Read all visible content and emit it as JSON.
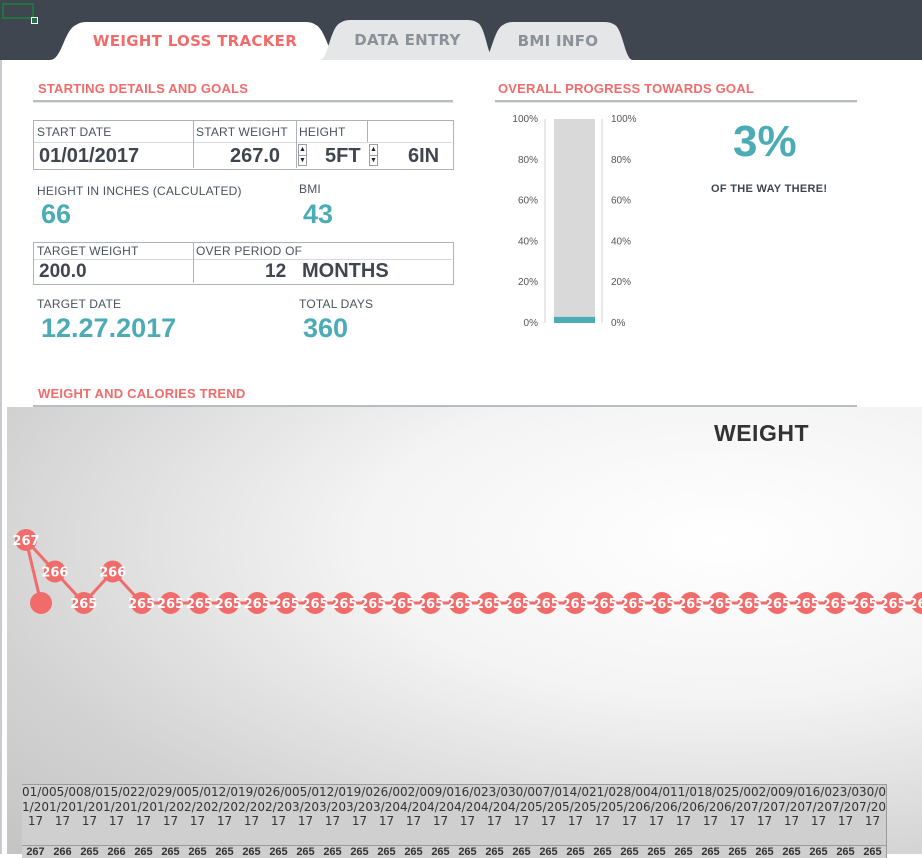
{
  "tabs": [
    {
      "label": "WEIGHT LOSS TRACKER",
      "active": true
    },
    {
      "label": "DATA ENTRY",
      "active": false
    },
    {
      "label": "BMI INFO",
      "active": false
    }
  ],
  "starting": {
    "section_title": "STARTING DETAILS AND GOALS",
    "start_date_label": "START DATE",
    "start_date": "01/01/2017",
    "start_weight_label": "START WEIGHT",
    "start_weight": "267.0",
    "height_label": "HEIGHT",
    "height_ft": "5FT",
    "height_in": "6IN",
    "height_inches_label": "HEIGHT IN INCHES (CALCULATED)",
    "height_inches": "66",
    "bmi_label": "BMI",
    "bmi": "43",
    "target_weight_label": "TARGET WEIGHT",
    "target_weight": "200.0",
    "period_label": "OVER PERIOD OF",
    "period_value": "12",
    "period_unit": "MONTHS",
    "target_date_label": "TARGET DATE",
    "target_date": "12.27.2017",
    "total_days_label": "TOTAL DAYS",
    "total_days": "360"
  },
  "progress": {
    "section_title": "OVERALL PROGRESS TOWARDS GOAL",
    "percent_text": "3%",
    "caption": "OF THE WAY THERE!",
    "ticks": [
      "100%",
      "80%",
      "60%",
      "40%",
      "20%",
      "0%"
    ]
  },
  "trend": {
    "section_title": "WEIGHT AND CALORIES TREND"
  },
  "colors": {
    "accent": "#f26b6b",
    "teal": "#4bacb6",
    "dark": "#3f4650"
  },
  "chart_data": [
    {
      "type": "bar",
      "categories": [
        ""
      ],
      "values": [
        3
      ],
      "ylim": [
        0,
        100
      ],
      "y_tick_labels": [
        "0%",
        "20%",
        "40%",
        "60%",
        "80%",
        "100%"
      ]
    },
    {
      "type": "line",
      "title": "WEIGHT",
      "x": [
        "01/01/2017",
        "05/01/2017",
        "08/01/2017",
        "15/01/2017",
        "22/01/2017",
        "29/01/2017",
        "05/02/2017",
        "12/02/2017",
        "19/02/2017",
        "26/02/2017",
        "05/03/2017",
        "12/03/2017",
        "19/03/2017",
        "26/03/2017",
        "02/04/2017",
        "09/04/2017",
        "16/04/2017",
        "23/04/2017",
        "30/04/2017",
        "07/05/2017",
        "14/05/2017",
        "21/05/2017",
        "28/05/2017",
        "04/06/2017",
        "11/06/2017",
        "18/06/2017",
        "25/06/2017",
        "02/07/2017",
        "09/07/2017",
        "16/07/2017",
        "23/07/2017",
        "30/07/2017"
      ],
      "series": [
        {
          "values": [
            267,
            266,
            265,
            266,
            265,
            265,
            265,
            265,
            265,
            265,
            265,
            265,
            265,
            265,
            265,
            265,
            265,
            265,
            265,
            265,
            265,
            265,
            265,
            265,
            265,
            265,
            265,
            265,
            265,
            265,
            265,
            265
          ]
        }
      ]
    }
  ]
}
